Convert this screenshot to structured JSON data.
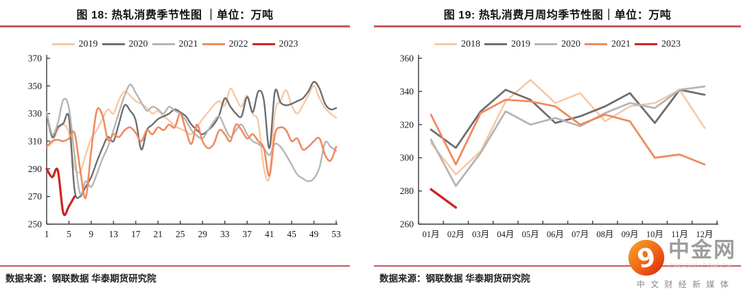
{
  "figures": [
    {
      "title": "图 18: 热轧消费季节性图 ｜单位：万吨",
      "source": "数据来源：钢联数据 华泰期货研究院"
    },
    {
      "title": "图 19: 热轧消费月周均季节性图｜单位：万吨",
      "source": "数据来源：钢联数据 华泰期货研究院"
    }
  ],
  "logo": {
    "name": "中金网",
    "domain": "CNGOLD.COM.CN",
    "tagline": "中 文 财 经 新 媒 体",
    "icon": "swirl-9-icon"
  },
  "style": {
    "rule_color": "#c4595c",
    "axis_color": "#3a3a3a",
    "title_color": "#111111"
  },
  "chart_data": [
    {
      "type": "line",
      "title": "图 18: 热轧消费季节性图 ｜单位：万吨",
      "unit": "万吨",
      "x_type": "linear",
      "xlim": [
        1,
        53
      ],
      "x_ticks": [
        1,
        5,
        9,
        13,
        17,
        21,
        25,
        29,
        33,
        37,
        41,
        45,
        49,
        53
      ],
      "ylim": [
        250,
        370
      ],
      "y_ticks": [
        250,
        270,
        290,
        310,
        330,
        350,
        370
      ],
      "smooth": true,
      "grid": false,
      "legend_position": "top",
      "series": [
        {
          "name": "2019",
          "color": "#f7c8a4",
          "width": 2.4,
          "x_start": 1,
          "values": [
            306,
            309,
            318,
            322,
            316,
            291,
            288,
            300,
            312,
            318,
            326,
            333,
            330,
            340,
            346,
            343,
            339,
            337,
            334,
            330,
            332,
            328,
            325,
            321,
            319,
            317,
            315,
            320,
            326,
            331,
            336,
            339,
            336,
            348,
            341,
            335,
            343,
            330,
            324,
            291,
            284,
            331,
            339,
            347,
            336,
            330,
            336,
            343,
            350,
            341,
            334,
            330,
            327
          ]
        },
        {
          "name": "2020",
          "color": "#6e6e6e",
          "width": 2.4,
          "x_start": 1,
          "values": [
            330,
            313,
            320,
            323,
            327,
            275,
            270,
            277,
            284,
            295,
            305,
            313,
            310,
            323,
            336,
            332,
            325,
            304,
            318,
            322,
            326,
            328,
            330,
            333,
            331,
            328,
            322,
            318,
            315,
            318,
            322,
            329,
            341,
            335,
            330,
            328,
            342,
            331,
            346,
            340,
            305,
            346,
            338,
            336,
            337,
            339,
            341,
            346,
            353,
            348,
            337,
            333,
            334
          ]
        },
        {
          "name": "2021",
          "color": "#b5b5b5",
          "width": 2.4,
          "x_start": 1,
          "values": [
            331,
            315,
            323,
            340,
            334,
            300,
            272,
            281,
            277,
            286,
            297,
            306,
            318,
            331,
            343,
            351,
            345,
            338,
            332,
            335,
            333,
            330,
            335,
            332,
            330,
            325,
            318,
            314,
            312,
            318,
            324,
            328,
            320,
            313,
            318,
            322,
            315,
            310,
            308,
            305,
            300,
            308,
            306,
            300,
            293,
            286,
            283,
            281,
            283,
            291,
            309,
            306,
            303
          ]
        },
        {
          "name": "2022",
          "color": "#f08a5e",
          "width": 2.6,
          "x_start": 1,
          "values": [
            306,
            310,
            311,
            310,
            312,
            316,
            290,
            269,
            303,
            332,
            329,
            311,
            315,
            313,
            318,
            320,
            316,
            310,
            318,
            315,
            320,
            318,
            322,
            320,
            330,
            318,
            308,
            322,
            310,
            305,
            308,
            318,
            315,
            310,
            322,
            318,
            312,
            315,
            310,
            305,
            285,
            315,
            320,
            318,
            310,
            312,
            304,
            306,
            310,
            312,
            300,
            296,
            306
          ]
        },
        {
          "name": "2023",
          "color": "#ce2322",
          "width": 3.2,
          "x_start": 1,
          "values": [
            290,
            284,
            289,
            258,
            263,
            270
          ]
        }
      ]
    },
    {
      "type": "line",
      "title": "图 19: 热轧消费月周均季节性图｜单位：万吨",
      "unit": "万吨",
      "x_type": "category",
      "categories": [
        "01月",
        "02月",
        "03月",
        "04月",
        "05月",
        "06月",
        "07月",
        "08月",
        "09月",
        "10月",
        "11月",
        "12月"
      ],
      "ylim": [
        260,
        360
      ],
      "y_ticks": [
        260,
        280,
        300,
        320,
        340,
        360
      ],
      "smooth": false,
      "grid": false,
      "legend_position": "top",
      "series": [
        {
          "name": "2018",
          "color": "#f7c8a4",
          "width": 2.6,
          "values": [
            309,
            290,
            304,
            334,
            347,
            333,
            339,
            322,
            331,
            333,
            341,
            318
          ]
        },
        {
          "name": "2019",
          "color": "#6e6e6e",
          "width": 2.8,
          "values": [
            317,
            306,
            328,
            341,
            335,
            321,
            325,
            331,
            339,
            321,
            341,
            338
          ]
        },
        {
          "name": "2020",
          "color": "#b5b5b5",
          "width": 2.8,
          "values": [
            311,
            283,
            303,
            328,
            320,
            324,
            319,
            327,
            333,
            330,
            341,
            343
          ]
        },
        {
          "name": "2021",
          "color": "#f08a5e",
          "width": 2.8,
          "values": [
            326,
            296,
            327,
            335,
            334,
            331,
            320,
            326,
            322,
            300,
            302,
            296
          ]
        },
        {
          "name": "2023",
          "color": "#ce2322",
          "width": 3.4,
          "values": [
            281,
            270
          ]
        }
      ]
    }
  ]
}
